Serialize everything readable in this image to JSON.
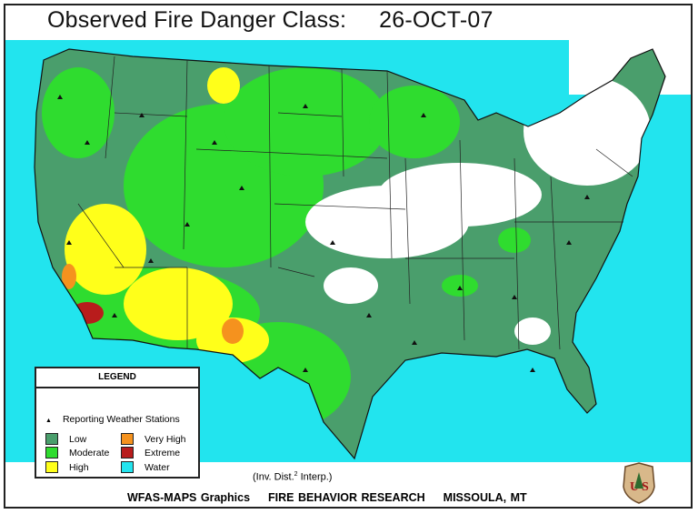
{
  "title": {
    "label": "Observed Fire Danger Class:",
    "date": "26-OCT-07"
  },
  "legend": {
    "heading": "LEGEND",
    "stations_label": "Reporting Weather Stations",
    "classes": [
      {
        "label": "Low",
        "color": "#4a9e6c"
      },
      {
        "label": "Moderate",
        "color": "#2fdc2f"
      },
      {
        "label": "High",
        "color": "#ffff1a"
      },
      {
        "label": "Very High",
        "color": "#f5921e"
      },
      {
        "label": "Extreme",
        "color": "#b81c1c"
      },
      {
        "label": "Water",
        "color": "#22e4ee"
      }
    ]
  },
  "interp_note": {
    "pre": "(Inv. Dist.",
    "sup": "2",
    "post": " Interp.)"
  },
  "footer": {
    "left": "WFAS-MAPS Graphics",
    "center": "FIRE BEHAVIOR RESEARCH",
    "right": "MISSOULA, MT"
  },
  "logo": {
    "text": "US"
  }
}
